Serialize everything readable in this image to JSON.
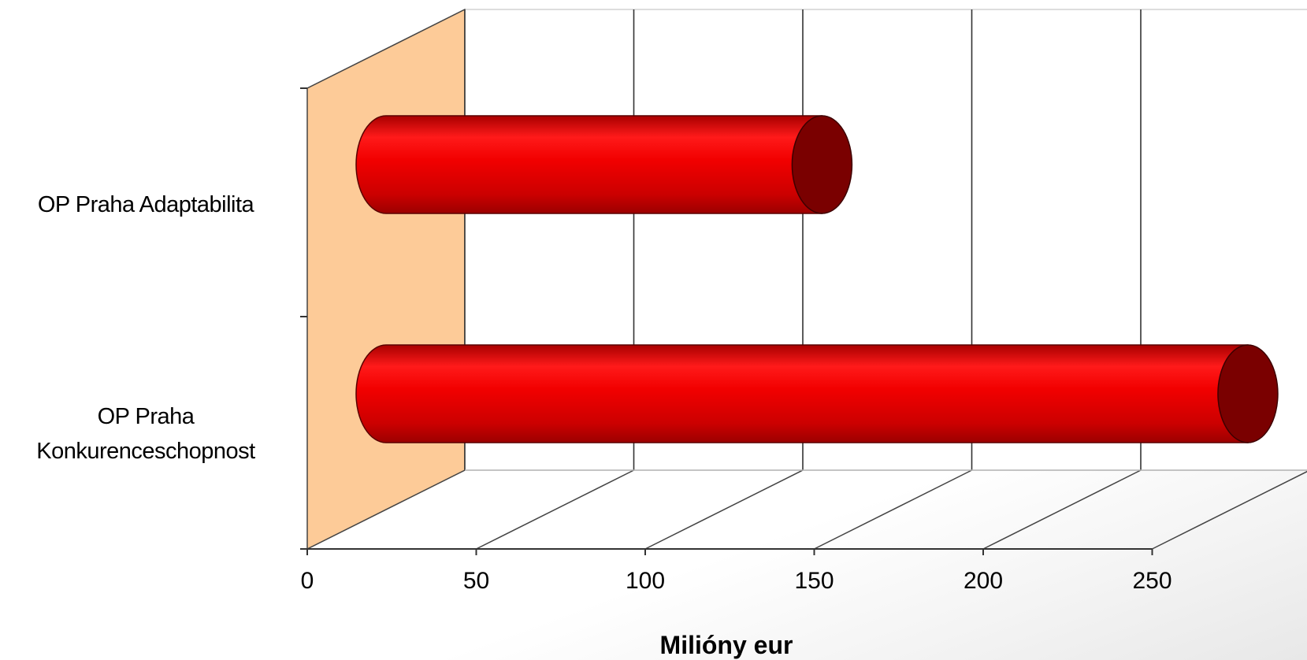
{
  "chart_data": {
    "type": "bar",
    "orientation": "horizontal",
    "style": "3d-cylinder",
    "categories": [
      "OP Praha Adaptabilita",
      "OP Praha Konkurenceschopnost"
    ],
    "category_lines": [
      [
        "OP Praha Adaptabilita"
      ],
      [
        "OP Praha",
        "Konkurenceschopnost"
      ]
    ],
    "values": [
      129,
      255
    ],
    "xlabel": "Milióny eur",
    "ylabel": "",
    "title": "",
    "xlim": [
      0,
      300
    ],
    "xticks": [
      0,
      50,
      100,
      150,
      200,
      250
    ],
    "grid": true,
    "legend": "none",
    "colors": {
      "bar_light": "#ff1a1a",
      "bar_mid": "#e00000",
      "bar_dark": "#b40000",
      "bar_cap": "#7a0000",
      "side_wall": "#fdcb98",
      "grid": "#333333"
    }
  }
}
